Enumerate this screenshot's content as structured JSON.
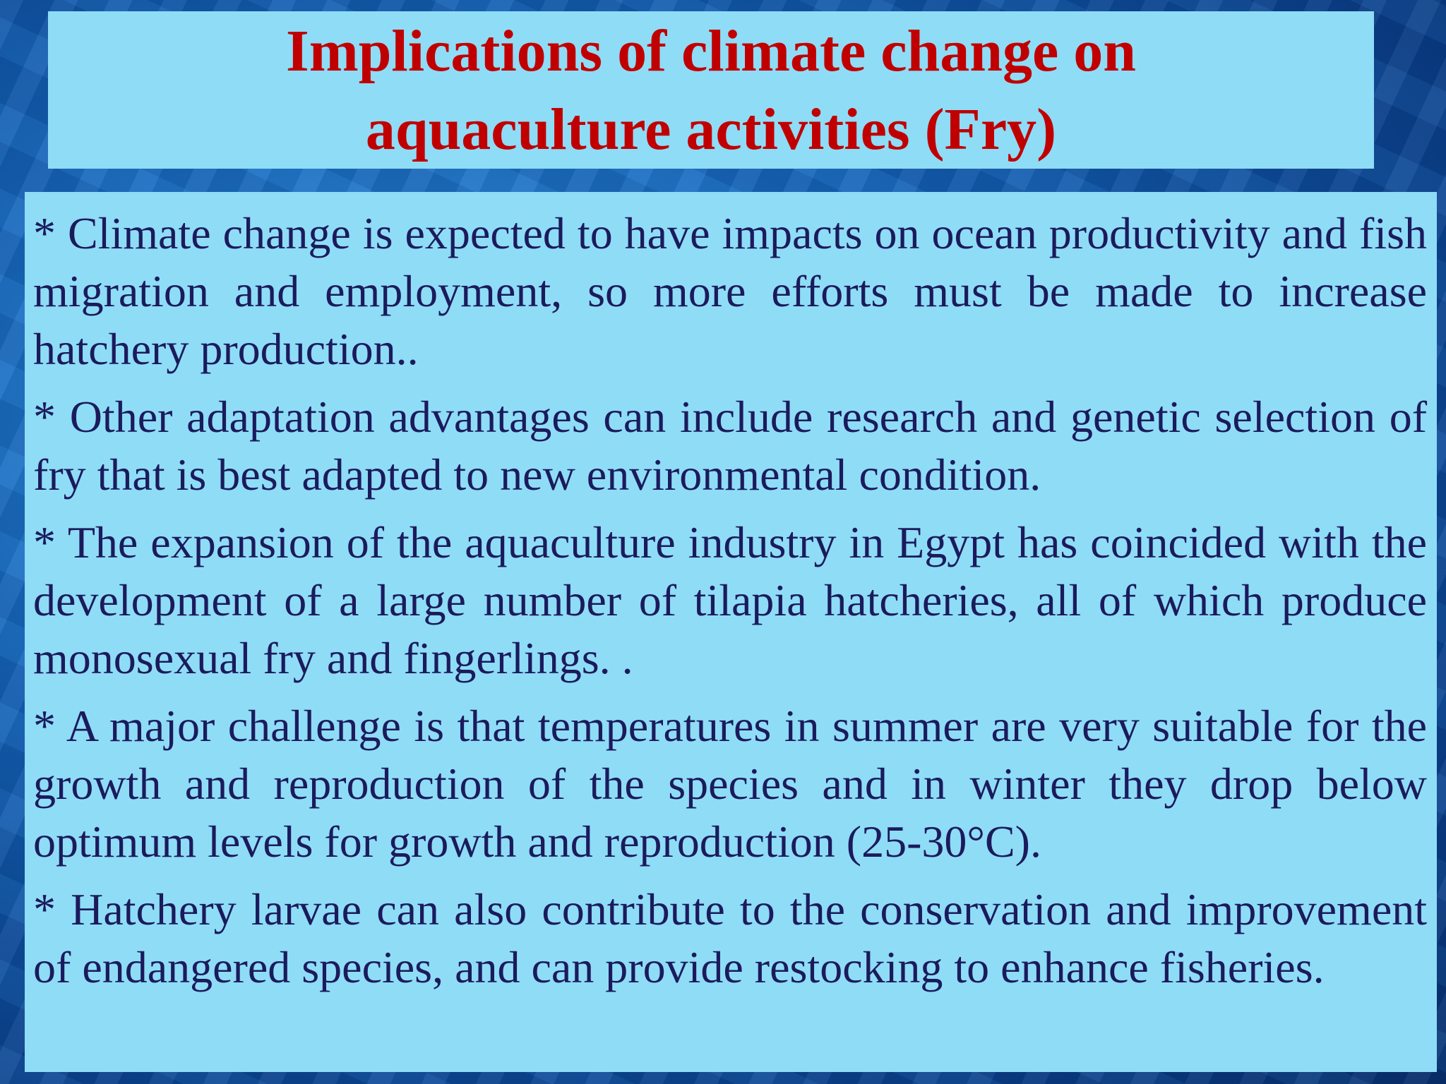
{
  "header": {
    "title_lines": [
      "Implications of climate change on",
      "aquaculture activities (Fry)"
    ]
  },
  "body": {
    "paragraphs": [
      "* Climate change is expected to have impacts on ocean productivity and fish migration and employment, so more efforts must be made to increase hatchery production..",
      "* Other adaptation advantages can include research and genetic selection of fry that is best adapted to new environmental condition.",
      "* The expansion of the aquaculture industry in Egypt has coincided with the development of a large number of tilapia hatcheries, all of which produce monosexual fry and fingerlings. .",
      "* A major challenge is that temperatures in summer are very suitable for the growth and reproduction of the species and in winter they drop below optimum levels for growth and reproduction (25-30°C).",
      "* Hatchery larvae can also contribute to the conservation and improvement of endangered species, and can provide restocking to enhance fisheries."
    ]
  }
}
